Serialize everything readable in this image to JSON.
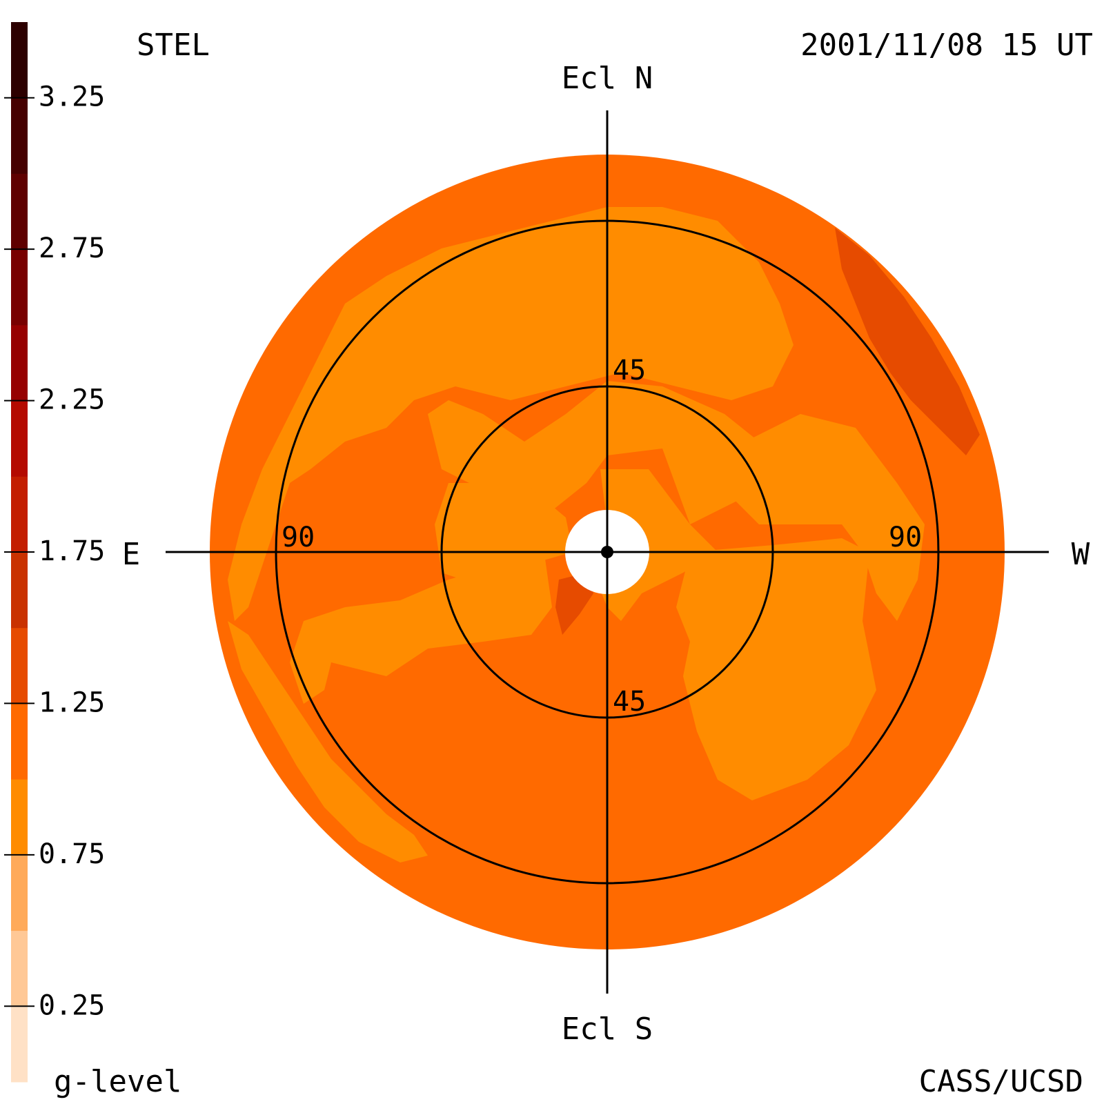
{
  "header": {
    "instrument": "STEL",
    "timestamp": "2001/11/08 15 UT"
  },
  "footer": {
    "colorbar_label": "g-level",
    "credit": "CASS/UCSD"
  },
  "chart_data": {
    "type": "heatmap",
    "projection": "fisheye sky map (polar)",
    "directions": {
      "north": "Ecl N",
      "south": "Ecl S",
      "east": "E",
      "west": "W"
    },
    "elongation_rings": [
      {
        "value": 45,
        "label_north": "45",
        "label_south": "45"
      },
      {
        "value": 90,
        "label_east": "90",
        "label_west": "90"
      }
    ],
    "outer_limit_deg": 108,
    "colorbar": {
      "range": [
        0,
        3.5
      ],
      "step": 0.25,
      "tick_labels": [
        "3.25",
        "2.75",
        "2.25",
        "1.75",
        "1.25",
        "0.75",
        "0.25"
      ],
      "tick_values": [
        3.25,
        2.75,
        2.25,
        1.75,
        1.25,
        0.75,
        0.25
      ],
      "colors": [
        "#ffe1c6",
        "#ffc896",
        "#ffaa5a",
        "#ff8c00",
        "#ff6a00",
        "#e64b00",
        "#c93200",
        "#c31e00",
        "#b40a00",
        "#960000",
        "#780000",
        "#5f0000",
        "#460000",
        "#2d0000"
      ]
    },
    "field": {
      "background_level": 1.1,
      "regions": [
        {
          "name": "inner-north-lobe",
          "level": 0.9
        },
        {
          "name": "inner-east-lobe",
          "level": 0.9
        },
        {
          "name": "inner-center",
          "level": 0.9
        },
        {
          "name": "inner-south-east-lobe",
          "level": 0.9
        },
        {
          "name": "south-west-lobe",
          "level": 0.9
        },
        {
          "name": "east-arc",
          "level": 0.9
        },
        {
          "name": "west-arc",
          "level": 0.9
        },
        {
          "name": "south-east-lobe",
          "level": 0.9
        },
        {
          "name": "north-west-ridge",
          "level": 1.4
        },
        {
          "name": "center-spot",
          "level": 1.4
        }
      ]
    }
  }
}
